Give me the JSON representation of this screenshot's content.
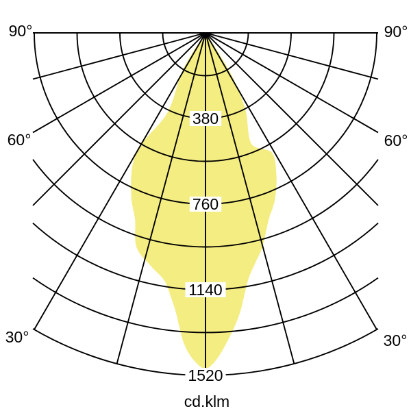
{
  "chart_data": {
    "type": "polar_photometric",
    "caption": "cd.klm",
    "angle_labels": [
      "90°",
      "60°",
      "30°"
    ],
    "angle_grid_step_deg": 15,
    "angle_range_deg": [
      -90,
      90
    ],
    "rings_cd_klm": [
      190,
      380,
      570,
      760,
      950,
      1140,
      1330,
      1520
    ],
    "labeled_rings_cd_klm": [
      380,
      760,
      1140,
      1520
    ],
    "ring_step_cd_klm": 190,
    "grid_color": "#000000",
    "text_color": "#000000",
    "beam": {
      "fill_color": "#F4ED82",
      "peak_cd_klm": 1490,
      "outline_polar_deg_cd": [
        [
          -33.0,
          0
        ],
        [
          -31.5,
          190
        ],
        [
          -25.5,
          390
        ],
        [
          -29.9,
          568
        ],
        [
          -28.7,
          676
        ],
        [
          -24.3,
          800
        ],
        [
          -20.7,
          885
        ],
        [
          -17.8,
          1000
        ],
        [
          -13.0,
          1065
        ],
        [
          -9.4,
          1115
        ],
        [
          -7.4,
          1185
        ],
        [
          -6.0,
          1250
        ],
        [
          -4.0,
          1380
        ],
        [
          -2.0,
          1455
        ],
        [
          0.0,
          1490
        ],
        [
          2.0,
          1448
        ],
        [
          4.5,
          1355
        ],
        [
          7.0,
          1252
        ],
        [
          9.7,
          1116
        ],
        [
          12.0,
          1050
        ],
        [
          14.9,
          982
        ],
        [
          18.7,
          875
        ],
        [
          21.0,
          832
        ],
        [
          23.1,
          790
        ],
        [
          26.5,
          705
        ],
        [
          29.0,
          608
        ],
        [
          22.5,
          532
        ],
        [
          27.4,
          385
        ],
        [
          31.5,
          230
        ],
        [
          34.0,
          60
        ],
        [
          34.0,
          0
        ]
      ]
    }
  }
}
